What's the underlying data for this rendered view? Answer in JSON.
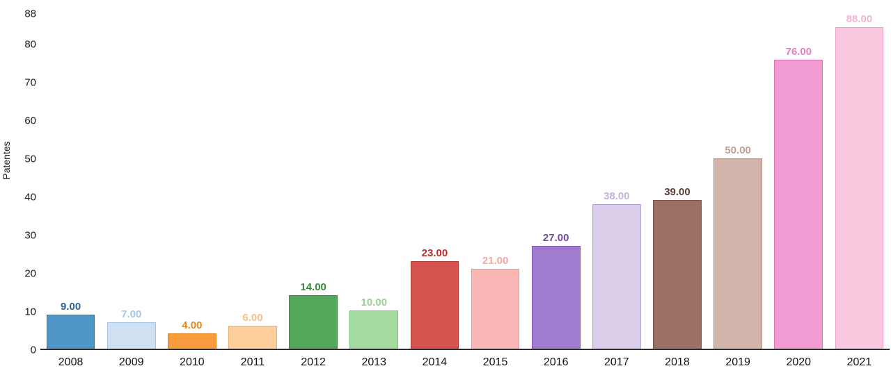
{
  "chart_data": {
    "type": "bar",
    "title": "",
    "xlabel": "",
    "ylabel": "Patentes",
    "ylim": [
      0,
      88
    ],
    "yticks": [
      0,
      10,
      20,
      30,
      40,
      50,
      60,
      70,
      80,
      88
    ],
    "grid": false,
    "legend": null,
    "categories": [
      "2008",
      "2009",
      "2010",
      "2011",
      "2012",
      "2013",
      "2014",
      "2015",
      "2016",
      "2017",
      "2018",
      "2019",
      "2020",
      "2021"
    ],
    "values": [
      9,
      7,
      4,
      6,
      14,
      10,
      23,
      21,
      27,
      38,
      39,
      50,
      76,
      88
    ],
    "value_labels": [
      "9.00",
      "7.00",
      "4.00",
      "6.00",
      "14.00",
      "10.00",
      "23.00",
      "21.00",
      "27.00",
      "38.00",
      "39.00",
      "50.00",
      "76.00",
      "88.00"
    ],
    "bar_colors": [
      "#4f97c8",
      "#cfe0f3",
      "#f89c3f",
      "#fccf9d",
      "#55a75c",
      "#a5daa0",
      "#d65350",
      "#fbb7b5",
      "#a17bce",
      "#d9cdea",
      "#9b7164",
      "#d2b4aa",
      "#f19bd2",
      "#f8c8de"
    ],
    "bar_border_colors": [
      "#2f77a8",
      "#a3c1e0",
      "#e07f14",
      "#f3ad62",
      "#3b8a44",
      "#7cc47d",
      "#b13835",
      "#ef918e",
      "#7e55ad",
      "#b5a4d2",
      "#795349",
      "#b18f83",
      "#de6fb5",
      "#f0a0c7"
    ],
    "label_colors": [
      "#2a6396",
      "#a9c4e3",
      "#e8861c",
      "#f7c084",
      "#348a3b",
      "#96d391",
      "#bb2a27",
      "#f7a6a3",
      "#714ba0",
      "#c3b3da",
      "#5c4038",
      "#bf9d92",
      "#ea7cc2",
      "#f4b4d1"
    ],
    "axis_line_color": "#2e2e2e",
    "background_color": "#ffffff"
  }
}
